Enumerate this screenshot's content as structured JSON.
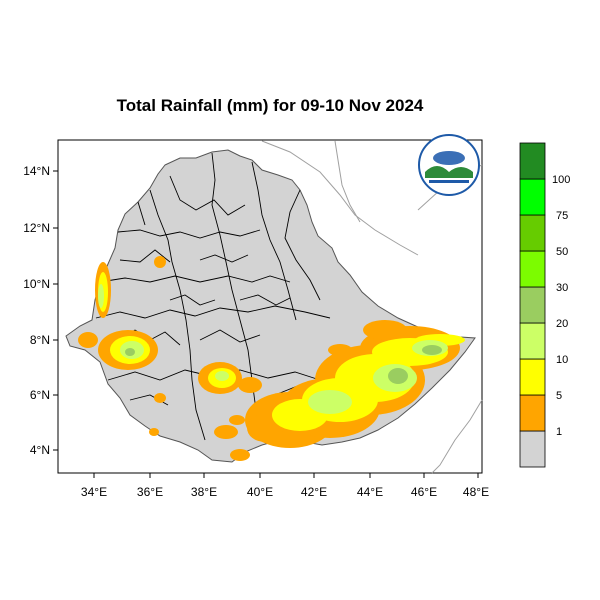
{
  "title": "Total Rainfall (mm) for 09-10 Nov 2024",
  "map": {
    "lon_range": [
      33,
      48.3
    ],
    "lat_range": [
      3.2,
      15.1
    ],
    "lon_ticks": [
      "34°E",
      "36°E",
      "38°E",
      "40°E",
      "42°E",
      "44°E",
      "46°E",
      "48°E"
    ],
    "lat_ticks": [
      "4°N",
      "6°N",
      "8°N",
      "10°N",
      "12°N",
      "14°N"
    ],
    "land_color": "#d3d3d3",
    "border_color": "#000000",
    "neighbor_border_color": "#a0a0a0"
  },
  "colorbar": {
    "labels": [
      "1",
      "5",
      "10",
      "20",
      "30",
      "50",
      "75",
      "100"
    ],
    "colors": [
      "#d3d3d3",
      "#ffa500",
      "#ffff00",
      "#ccff66",
      "#9acd60",
      "#7cfc00",
      "#66cc00",
      "#00ff00",
      "#228b22"
    ]
  },
  "logo": {
    "icon": "ethiopian-meteorology-institute-logo"
  }
}
